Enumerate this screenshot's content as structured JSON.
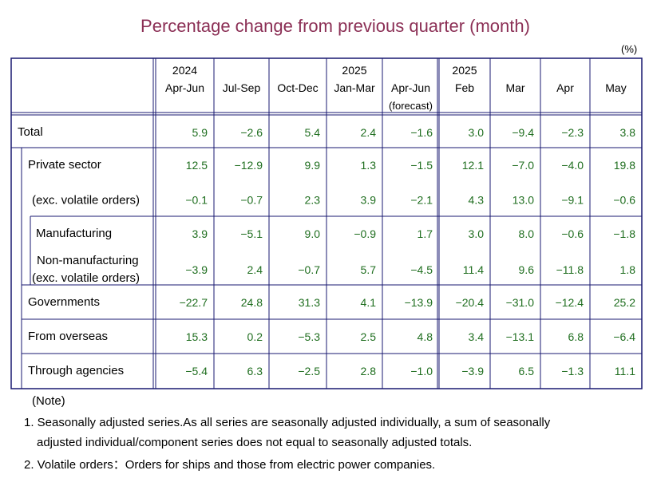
{
  "title": "Percentage change from previous quarter (month)",
  "unit": "(%)",
  "colors": {
    "title": "#8b2f55",
    "border": "#191970",
    "value": "#1f6e1f",
    "label": "#1a1a8c"
  },
  "chart_data": {
    "type": "table",
    "title": "Percentage change from previous quarter (month)",
    "columns": [
      {
        "group": "2024",
        "label": "Apr-Jun",
        "sub": ""
      },
      {
        "group": "",
        "label": "Jul-Sep",
        "sub": ""
      },
      {
        "group": "",
        "label": "Oct-Dec",
        "sub": ""
      },
      {
        "group": "2025",
        "label": "Jan-Mar",
        "sub": ""
      },
      {
        "group": "",
        "label": "Apr-Jun",
        "sub": "(forecast)"
      },
      {
        "group": "2025",
        "label": "Feb",
        "sub": ""
      },
      {
        "group": "",
        "label": "Mar",
        "sub": ""
      },
      {
        "group": "",
        "label": "Apr",
        "sub": ""
      },
      {
        "group": "",
        "label": "May",
        "sub": ""
      }
    ],
    "rows": [
      {
        "label": [
          "Total"
        ],
        "indent": 0,
        "values": [
          "5.9",
          "−2.6",
          "5.4",
          "2.4",
          "−1.6",
          "3.0",
          "−9.4",
          "−2.3",
          "3.8"
        ]
      },
      {
        "label": [
          "Private sector"
        ],
        "indent": 1,
        "values": [
          "12.5",
          "−12.9",
          "9.9",
          "1.3",
          "−1.5",
          "12.1",
          "−7.0",
          "−4.0",
          "19.8"
        ]
      },
      {
        "label": [
          "(exc. volatile orders)"
        ],
        "indent": 1.5,
        "values": [
          "−0.1",
          "−0.7",
          "2.3",
          "3.9",
          "−2.1",
          "4.3",
          "13.0",
          "−9.1",
          "−0.6"
        ]
      },
      {
        "label": [
          "Manufacturing"
        ],
        "indent": 2,
        "values": [
          "3.9",
          "−5.1",
          "9.0",
          "−0.9",
          "1.7",
          "3.0",
          "8.0",
          "−0.6",
          "−1.8"
        ]
      },
      {
        "label": [
          "Non-manufacturing",
          "(exc. volatile orders)"
        ],
        "indent": 2,
        "values": [
          "−3.9",
          "2.4",
          "−0.7",
          "5.7",
          "−4.5",
          "11.4",
          "9.6",
          "−11.8",
          "1.8"
        ]
      },
      {
        "label": [
          "Governments"
        ],
        "indent": 1,
        "values": [
          "−22.7",
          "24.8",
          "31.3",
          "4.1",
          "−13.9",
          "−20.4",
          "−31.0",
          "−12.4",
          "25.2"
        ]
      },
      {
        "label": [
          "From overseas"
        ],
        "indent": 1,
        "values": [
          "15.3",
          "0.2",
          "−5.3",
          "2.5",
          "4.8",
          "3.4",
          "−13.1",
          "6.8",
          "−6.4"
        ]
      },
      {
        "label": [
          "Through agencies"
        ],
        "indent": 1,
        "values": [
          "−5.4",
          "6.3",
          "−2.5",
          "2.8",
          "−1.0",
          "−3.9",
          "6.5",
          "−1.3",
          "11.1"
        ]
      }
    ]
  },
  "notes": {
    "heading": "(Note)",
    "lines": [
      "1. Seasonally adjusted series.As all series are seasonally adjusted individually,  a sum of seasonally",
      "adjusted individual/component series does not equal to seasonally adjusted totals.",
      "2. Volatile orders：Orders for ships and those from electric power companies."
    ]
  }
}
